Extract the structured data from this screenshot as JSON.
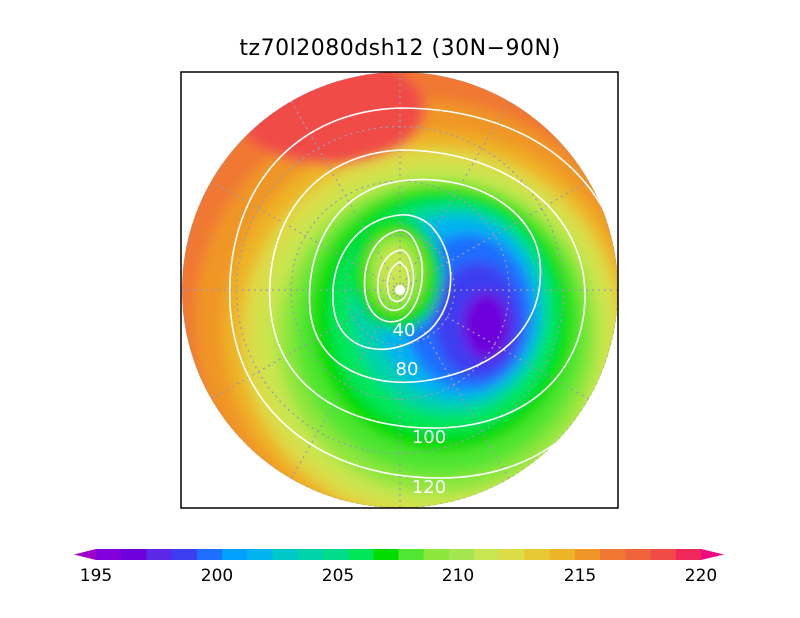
{
  "title": "tz70l2080dsh12 (30N−90N)",
  "map": {
    "projection": "north-polar-stereographic",
    "lat_range": [
      30,
      90
    ],
    "contour_labels": [
      "40",
      "80",
      "100",
      "120"
    ]
  },
  "colorbar": {
    "min": 195,
    "max": 220,
    "step": 1,
    "tick_labels": [
      "195",
      "200",
      "205",
      "210",
      "215",
      "220"
    ],
    "colors": [
      "#a000c8",
      "#8200dc",
      "#6e00dc",
      "#5a28e6",
      "#3c3cf0",
      "#1e6eff",
      "#00a0ff",
      "#00b4f0",
      "#00c8c8",
      "#00d2aa",
      "#00dc8c",
      "#00e65a",
      "#00dc00",
      "#50e632",
      "#8ce63c",
      "#a5e650",
      "#c8e650",
      "#dcdc46",
      "#e6c832",
      "#eeb428",
      "#f09628",
      "#f07832",
      "#f0643c",
      "#f04b46",
      "#f0285a",
      "#f00a82"
    ]
  }
}
